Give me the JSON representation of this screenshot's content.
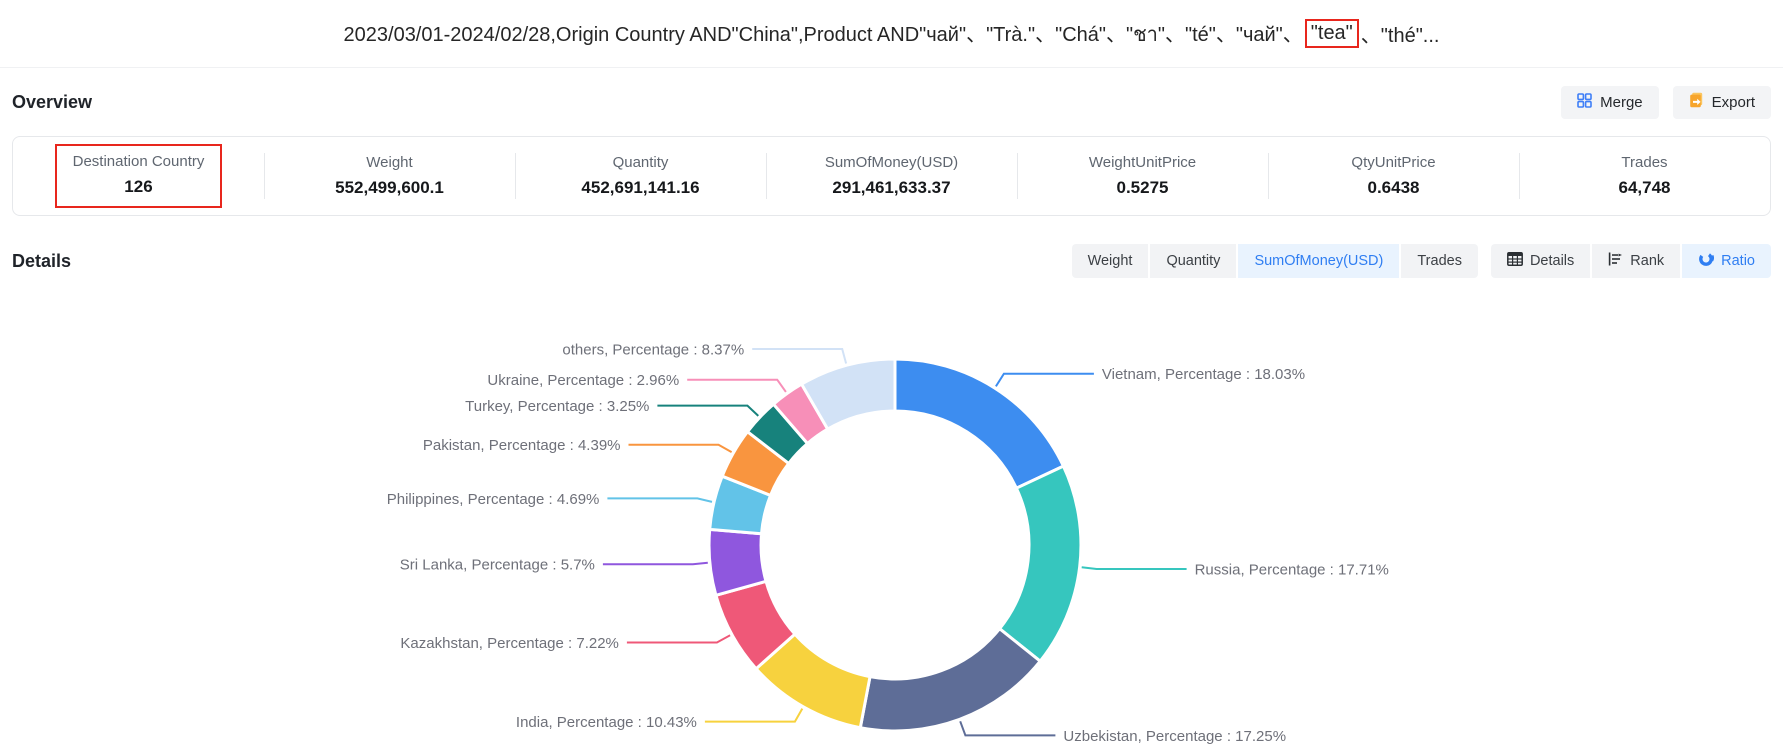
{
  "title": {
    "prefix": "2023/03/01-2024/02/28,Origin Country AND\"China\",Product AND\"чай\"、\"Trà.\"、\"Chá\"、\"ชา\"、\"té\"、\"чай\"、",
    "highlighted": "\"tea\"",
    "suffix": "、\"thé\"..."
  },
  "overview": {
    "heading": "Overview",
    "merge_label": "Merge",
    "export_label": "Export",
    "stats": [
      {
        "label": "Destination Country",
        "value": "126",
        "highlighted": true
      },
      {
        "label": "Weight",
        "value": "552,499,600.1"
      },
      {
        "label": "Quantity",
        "value": "452,691,141.16"
      },
      {
        "label": "SumOfMoney(USD)",
        "value": "291,461,633.37"
      },
      {
        "label": "WeightUnitPrice",
        "value": "0.5275"
      },
      {
        "label": "QtyUnitPrice",
        "value": "0.6438"
      },
      {
        "label": "Trades",
        "value": "64,748"
      }
    ]
  },
  "details": {
    "heading": "Details",
    "measure_tabs": [
      {
        "label": "Weight",
        "active": false
      },
      {
        "label": "Quantity",
        "active": false
      },
      {
        "label": "SumOfMoney(USD)",
        "active": true
      },
      {
        "label": "Trades",
        "active": false
      }
    ],
    "view_tabs": [
      {
        "label": "Details",
        "icon": "table-icon",
        "active": false
      },
      {
        "label": "Rank",
        "icon": "rank-icon",
        "active": false
      },
      {
        "label": "Ratio",
        "icon": "donut-icon",
        "active": true
      }
    ]
  },
  "colors": {
    "accent_blue": "#2f7ef2",
    "tab_active_bg": "#e9f3fe",
    "tab_bg": "#f2f3f5",
    "annotation_red": "#e8261d",
    "chart_label_gray": "#6E7079"
  },
  "chart_data": {
    "type": "pie",
    "donut": true,
    "start_angle_deg": 0,
    "direction": "clockwise",
    "legend_position": "none",
    "label_format": "{name},  Percentage : {value}%",
    "segments": [
      {
        "name": "Vietnam",
        "value": 18.03,
        "color": "#3D8DF0"
      },
      {
        "name": "Russia",
        "value": 17.71,
        "color": "#36C6BE"
      },
      {
        "name": "Uzbekistan",
        "value": 17.25,
        "color": "#5E6D97"
      },
      {
        "name": "India",
        "value": 10.43,
        "color": "#F7D23E"
      },
      {
        "name": "Kazakhstan",
        "value": 7.22,
        "color": "#EF5878"
      },
      {
        "name": "Sri Lanka",
        "value": 5.7,
        "color": "#8F57DE"
      },
      {
        "name": "Philippines",
        "value": 4.69,
        "color": "#62C3E8"
      },
      {
        "name": "Pakistan",
        "value": 4.39,
        "color": "#F9953F"
      },
      {
        "name": "Turkey",
        "value": 3.25,
        "color": "#17827C"
      },
      {
        "name": "Ukraine",
        "value": 2.96,
        "color": "#F78FB8"
      },
      {
        "name": "others",
        "value": 8.37,
        "color": "#D2E2F6"
      }
    ]
  }
}
